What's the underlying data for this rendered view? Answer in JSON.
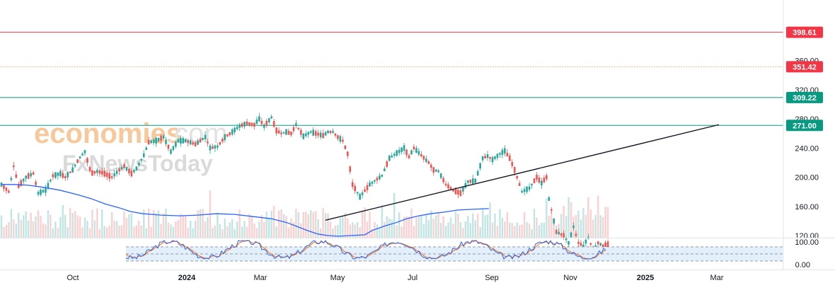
{
  "watermark": {
    "part1": "economies",
    "part2": ".com",
    "line2": "FxNewsToday"
  },
  "chart_data": {
    "type": "candlestick",
    "title": "",
    "x_ticks": [
      "Oct",
      "2024",
      "Mar",
      "May",
      "Jul",
      "Sep",
      "Nov",
      "2025",
      "Mar"
    ],
    "bold_x_ticks": [
      "2024",
      "2025"
    ],
    "y_ticks": [
      "120.00",
      "160.00",
      "200.00",
      "240.00",
      "280.00",
      "320.00",
      "360.00"
    ],
    "ylim": [
      110,
      420
    ],
    "price_levels": [
      {
        "value": 398.61,
        "label": "398.61",
        "color": "#f23645",
        "style": "solid"
      },
      {
        "value": 351.42,
        "label": "351.42",
        "color": "#f23645",
        "style": "dotted"
      },
      {
        "value": 309.22,
        "label": "309.22",
        "color": "#089981",
        "style": "solid"
      },
      {
        "value": 271.0,
        "label": "271.00",
        "color": "#089981",
        "style": "solid"
      }
    ],
    "trendline": {
      "start": {
        "x": "2024-04-22",
        "y": 141
      },
      "end": {
        "x": "2025-03-01",
        "y": 272
      },
      "color": "#131722"
    },
    "moving_average": {
      "color": "#2962ff",
      "points": [
        [
          0,
          190
        ],
        [
          10,
          190
        ],
        [
          22,
          189
        ],
        [
          35,
          186
        ],
        [
          48,
          182
        ],
        [
          62,
          176
        ],
        [
          74,
          170
        ],
        [
          85,
          163
        ],
        [
          96,
          158
        ],
        [
          105,
          153
        ],
        [
          115,
          150
        ],
        [
          130,
          148
        ],
        [
          145,
          147
        ],
        [
          160,
          148
        ],
        [
          175,
          150
        ],
        [
          190,
          149
        ],
        [
          205,
          146
        ],
        [
          220,
          143
        ],
        [
          232,
          138
        ],
        [
          240,
          133
        ],
        [
          249,
          127
        ],
        [
          258,
          122
        ],
        [
          266,
          120
        ],
        [
          274,
          119
        ],
        [
          285,
          120
        ],
        [
          296,
          121
        ],
        [
          302,
          127
        ],
        [
          312,
          133
        ],
        [
          322,
          138
        ],
        [
          330,
          143
        ],
        [
          340,
          147
        ],
        [
          350,
          150
        ],
        [
          360,
          152
        ],
        [
          372,
          155
        ],
        [
          384,
          156
        ],
        [
          397,
          157
        ]
      ]
    },
    "price_path": {
      "comment_free": true,
      "points": [
        [
          0,
          190
        ],
        [
          6,
          180
        ],
        [
          10,
          215
        ],
        [
          14,
          188
        ],
        [
          20,
          200
        ],
        [
          26,
          205
        ],
        [
          30,
          178
        ],
        [
          36,
          182
        ],
        [
          42,
          202
        ],
        [
          48,
          205
        ],
        [
          52,
          200
        ],
        [
          58,
          210
        ],
        [
          63,
          225
        ],
        [
          68,
          235
        ],
        [
          73,
          205
        ],
        [
          78,
          208
        ],
        [
          84,
          205
        ],
        [
          90,
          200
        ],
        [
          96,
          210
        ],
        [
          100,
          215
        ],
        [
          106,
          205
        ],
        [
          110,
          212
        ],
        [
          116,
          230
        ],
        [
          120,
          248
        ],
        [
          126,
          250
        ],
        [
          132,
          255
        ],
        [
          138,
          235
        ],
        [
          144,
          250
        ],
        [
          150,
          250
        ],
        [
          158,
          245
        ],
        [
          166,
          255
        ],
        [
          170,
          240
        ],
        [
          176,
          242
        ],
        [
          182,
          255
        ],
        [
          188,
          262
        ],
        [
          194,
          270
        ],
        [
          200,
          274
        ],
        [
          206,
          272
        ],
        [
          210,
          280
        ],
        [
          214,
          270
        ],
        [
          220,
          282
        ],
        [
          224,
          264
        ],
        [
          228,
          260
        ],
        [
          232,
          262
        ],
        [
          236,
          260
        ],
        [
          240,
          272
        ],
        [
          246,
          256
        ],
        [
          252,
          262
        ],
        [
          256,
          260
        ],
        [
          262,
          257
        ],
        [
          266,
          262
        ],
        [
          270,
          262
        ],
        [
          274,
          255
        ],
        [
          278,
          250
        ],
        [
          282,
          232
        ],
        [
          286,
          190
        ],
        [
          292,
          173
        ],
        [
          300,
          190
        ],
        [
          304,
          195
        ],
        [
          310,
          202
        ],
        [
          316,
          226
        ],
        [
          322,
          233
        ],
        [
          328,
          240
        ],
        [
          332,
          228
        ],
        [
          336,
          240
        ],
        [
          342,
          230
        ],
        [
          348,
          220
        ],
        [
          352,
          210
        ],
        [
          356,
          208
        ],
        [
          362,
          190
        ],
        [
          368,
          182
        ],
        [
          374,
          178
        ],
        [
          380,
          194
        ],
        [
          386,
          195
        ],
        [
          392,
          226
        ],
        [
          396,
          229
        ],
        [
          400,
          224
        ],
        [
          406,
          232
        ],
        [
          410,
          236
        ],
        [
          414,
          226
        ],
        [
          418,
          210
        ],
        [
          424,
          180
        ],
        [
          430,
          185
        ],
        [
          436,
          200
        ],
        [
          440,
          192
        ],
        [
          444,
          200
        ],
        [
          446,
          170
        ],
        [
          448,
          155
        ],
        [
          452,
          125
        ],
        [
          458,
          120
        ],
        [
          462,
          110
        ],
        [
          466,
          132
        ],
        [
          470,
          110
        ],
        [
          474,
          106
        ],
        [
          478,
          117
        ],
        [
          482,
          100
        ],
        [
          486,
          110
        ],
        [
          490,
          106
        ],
        [
          494,
          108
        ]
      ]
    },
    "volume": {
      "color": "#f7c5c5",
      "color2": "#b2dfdb"
    },
    "stochastic": {
      "ticks": [
        "100.00",
        "0.00"
      ],
      "k_color": "#2962ff",
      "d_color": "#ff6d00",
      "band_color": "#e3f0fb"
    },
    "badges": [
      {
        "label": "398.61",
        "color": "#f23645"
      },
      {
        "label": "351.42",
        "color": "#f23645"
      },
      {
        "label": "309.22",
        "color": "#089981"
      },
      {
        "label": "271.00",
        "color": "#089981"
      }
    ]
  }
}
